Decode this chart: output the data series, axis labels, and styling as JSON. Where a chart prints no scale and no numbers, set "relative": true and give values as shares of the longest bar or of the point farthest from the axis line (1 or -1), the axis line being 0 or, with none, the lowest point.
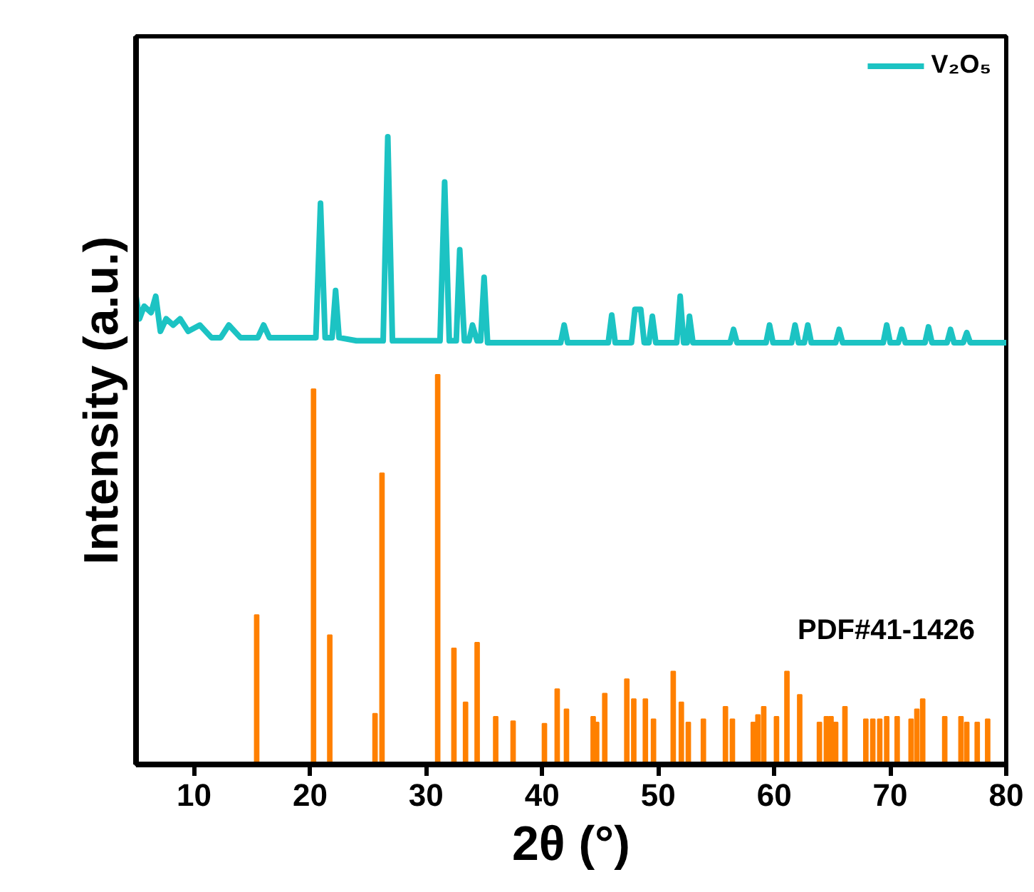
{
  "chart_data": {
    "type": "line",
    "xlabel": "2θ (°)",
    "ylabel": "Intensity (a.u.)",
    "relative": true,
    "xlim": [
      5,
      80
    ],
    "xticks": [
      10,
      20,
      30,
      40,
      50,
      60,
      70,
      80
    ],
    "legend": "top right",
    "series": [
      {
        "name": "V₂O₅",
        "color": "#1cc3c3",
        "x": [
          5.0,
          5.3,
          5.7,
          6.3,
          6.7,
          7.1,
          7.6,
          8.2,
          8.8,
          9.5,
          10.5,
          11.5,
          12.3,
          13.0,
          14.0,
          15.5,
          16.0,
          16.5,
          18.0,
          20.5,
          20.9,
          21.3,
          21.9,
          22.2,
          22.5,
          24.0,
          26.3,
          26.7,
          27.1,
          31.2,
          31.6,
          32.0,
          32.6,
          32.9,
          33.3,
          33.7,
          34.0,
          34.4,
          34.7,
          35.0,
          35.3,
          38.0,
          41.6,
          41.9,
          42.2,
          45.7,
          46.0,
          46.3,
          47.7,
          48.0,
          48.5,
          48.8,
          49.2,
          49.5,
          49.8,
          51.6,
          51.9,
          52.2,
          52.5,
          52.7,
          53.0,
          56.2,
          56.5,
          56.8,
          59.3,
          59.6,
          59.9,
          61.5,
          61.8,
          62.1,
          62.6,
          62.9,
          63.2,
          65.3,
          65.6,
          65.9,
          69.4,
          69.7,
          70.0,
          70.7,
          71.0,
          71.3,
          73.0,
          73.3,
          73.6,
          74.9,
          75.2,
          75.5,
          76.3,
          76.6,
          76.9,
          80.0
        ],
        "values": [
          0.746,
          0.71,
          0.73,
          0.72,
          0.746,
          0.69,
          0.71,
          0.7,
          0.71,
          0.69,
          0.7,
          0.68,
          0.68,
          0.7,
          0.68,
          0.68,
          0.7,
          0.68,
          0.68,
          0.68,
          0.894,
          0.68,
          0.68,
          0.755,
          0.68,
          0.675,
          0.675,
          1.0,
          0.675,
          0.675,
          0.928,
          0.675,
          0.675,
          0.82,
          0.675,
          0.675,
          0.7,
          0.675,
          0.675,
          0.776,
          0.672,
          0.672,
          0.672,
          0.7,
          0.672,
          0.672,
          0.716,
          0.672,
          0.672,
          0.725,
          0.725,
          0.672,
          0.672,
          0.714,
          0.672,
          0.672,
          0.746,
          0.672,
          0.672,
          0.714,
          0.672,
          0.672,
          0.693,
          0.672,
          0.672,
          0.7,
          0.672,
          0.672,
          0.7,
          0.672,
          0.672,
          0.7,
          0.672,
          0.672,
          0.693,
          0.672,
          0.672,
          0.7,
          0.672,
          0.672,
          0.693,
          0.672,
          0.672,
          0.697,
          0.672,
          0.672,
          0.693,
          0.672,
          0.672,
          0.688,
          0.672,
          0.672
        ]
      },
      {
        "name": "PDF#41-1426",
        "type": "bar",
        "color": "#ff8000",
        "x": [
          15.4,
          20.3,
          21.7,
          25.6,
          26.2,
          31.0,
          32.4,
          33.4,
          34.4,
          36.0,
          37.5,
          40.2,
          41.3,
          42.1,
          44.4,
          44.7,
          45.4,
          47.3,
          47.9,
          48.9,
          49.6,
          51.3,
          52.0,
          52.6,
          53.9,
          55.8,
          56.4,
          58.2,
          58.6,
          59.1,
          60.2,
          61.1,
          62.2,
          63.9,
          64.5,
          64.9,
          65.3,
          66.1,
          67.9,
          68.5,
          69.1,
          69.7,
          70.6,
          71.8,
          72.3,
          72.8,
          74.7,
          76.1,
          76.6,
          77.5,
          78.4
        ],
        "values": [
          0.238,
          0.598,
          0.206,
          0.081,
          0.464,
          0.621,
          0.185,
          0.099,
          0.194,
          0.076,
          0.069,
          0.065,
          0.12,
          0.088,
          0.076,
          0.067,
          0.113,
          0.136,
          0.104,
          0.104,
          0.072,
          0.148,
          0.099,
          0.067,
          0.072,
          0.092,
          0.072,
          0.067,
          0.079,
          0.092,
          0.076,
          0.148,
          0.111,
          0.067,
          0.076,
          0.076,
          0.067,
          0.092,
          0.072,
          0.072,
          0.072,
          0.076,
          0.076,
          0.072,
          0.088,
          0.104,
          0.076,
          0.076,
          0.067,
          0.067,
          0.072
        ]
      }
    ]
  }
}
